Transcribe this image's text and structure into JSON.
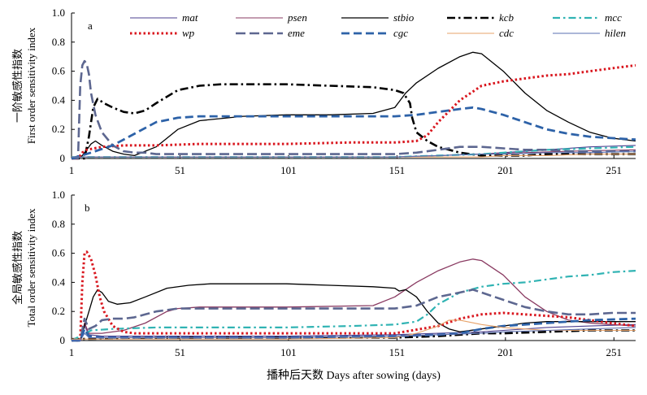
{
  "figure": {
    "xlabel": "播种后天数 Days after sowing (days)"
  },
  "colors": {
    "mat": "#4b3f8f",
    "psen": "#8a3b62",
    "stbio": "#000000",
    "kcb": "#000000",
    "mcc": "#30b3b3",
    "wp": "#d9161e",
    "eme": "#5d6790",
    "cgc": "#2d62a8",
    "cdc": "#e7a36a",
    "hilen": "#5a6fb0"
  },
  "chart_data": [
    {
      "type": "line",
      "panel": "a",
      "ylabel_cn": "一阶敏感性指数",
      "ylabel_en": "First order sensitivity index",
      "xlim": [
        1,
        261
      ],
      "ylim": [
        0,
        1.0
      ],
      "xticks": [
        1,
        51,
        101,
        151,
        201,
        251
      ],
      "yticks": [
        0,
        0.2,
        0.4,
        0.6,
        0.8,
        1.0
      ],
      "ytick_labels": [
        "0",
        "0.2",
        "0.4",
        "0.6",
        "0.8",
        "1.0"
      ],
      "grid": false,
      "legend": "top-center, 5 columns",
      "series": [
        {
          "name": "mat",
          "style": "solid-thin",
          "x": [
            1,
            50,
            100,
            150,
            170,
            190,
            200,
            220,
            240,
            261
          ],
          "y": [
            0.01,
            0.01,
            0.01,
            0.01,
            0.02,
            0.03,
            0.04,
            0.06,
            0.08,
            0.09
          ]
        },
        {
          "name": "psen",
          "style": "solid-thin",
          "x": [
            1,
            50,
            100,
            150,
            170,
            190,
            210,
            230,
            261
          ],
          "y": [
            0.01,
            0.01,
            0.01,
            0.01,
            0.02,
            0.03,
            0.04,
            0.05,
            0.06
          ]
        },
        {
          "name": "stbio",
          "style": "solid",
          "x": [
            1,
            4,
            6,
            8,
            10,
            12,
            15,
            20,
            25,
            30,
            40,
            50,
            60,
            80,
            100,
            120,
            140,
            150,
            155,
            160,
            170,
            180,
            186,
            190,
            200,
            210,
            220,
            230,
            240,
            250,
            261
          ],
          "y": [
            0,
            0,
            0.02,
            0.06,
            0.1,
            0.12,
            0.09,
            0.05,
            0.03,
            0.02,
            0.08,
            0.2,
            0.26,
            0.29,
            0.3,
            0.3,
            0.31,
            0.35,
            0.45,
            0.52,
            0.62,
            0.7,
            0.73,
            0.72,
            0.6,
            0.45,
            0.33,
            0.25,
            0.18,
            0.14,
            0.12
          ]
        },
        {
          "name": "kcb",
          "style": "dashdot-bold",
          "x": [
            1,
            7,
            9,
            11,
            13,
            16,
            20,
            25,
            30,
            35,
            40,
            50,
            60,
            70,
            80,
            100,
            120,
            140,
            150,
            154,
            157,
            158,
            160,
            165,
            170,
            180,
            190,
            200,
            210,
            220,
            230,
            240,
            250,
            261
          ],
          "y": [
            0,
            0,
            0.15,
            0.35,
            0.41,
            0.38,
            0.35,
            0.32,
            0.31,
            0.33,
            0.38,
            0.47,
            0.5,
            0.51,
            0.51,
            0.51,
            0.5,
            0.49,
            0.47,
            0.45,
            0.38,
            0.28,
            0.18,
            0.12,
            0.08,
            0.04,
            0.02,
            0.02,
            0.02,
            0.03,
            0.03,
            0.03,
            0.03,
            0.03
          ]
        },
        {
          "name": "mcc",
          "style": "dashdot",
          "x": [
            1,
            100,
            150,
            170,
            190,
            200,
            210,
            220,
            240,
            261
          ],
          "y": [
            0.01,
            0.01,
            0.01,
            0.02,
            0.03,
            0.04,
            0.05,
            0.06,
            0.07,
            0.08
          ]
        },
        {
          "name": "wp",
          "style": "dotted-bold",
          "x": [
            1,
            4,
            6,
            8,
            15,
            25,
            40,
            60,
            100,
            130,
            150,
            160,
            165,
            170,
            180,
            190,
            200,
            210,
            220,
            230,
            240,
            250,
            261
          ],
          "y": [
            0,
            0,
            0.04,
            0.06,
            0.08,
            0.09,
            0.09,
            0.1,
            0.1,
            0.11,
            0.11,
            0.12,
            0.16,
            0.25,
            0.4,
            0.5,
            0.53,
            0.55,
            0.57,
            0.58,
            0.6,
            0.62,
            0.64
          ]
        },
        {
          "name": "eme",
          "style": "dash-long",
          "x": [
            1,
            4,
            5,
            6,
            7,
            8,
            9,
            10,
            12,
            15,
            20,
            25,
            30,
            35,
            40,
            60,
            100,
            150,
            160,
            170,
            180,
            190,
            200,
            210,
            220,
            230,
            240,
            250,
            261
          ],
          "y": [
            0,
            0,
            0.5,
            0.64,
            0.67,
            0.65,
            0.58,
            0.45,
            0.3,
            0.18,
            0.09,
            0.05,
            0.04,
            0.04,
            0.03,
            0.03,
            0.03,
            0.03,
            0.04,
            0.06,
            0.08,
            0.08,
            0.07,
            0.06,
            0.06,
            0.05,
            0.05,
            0.05,
            0.05
          ]
        },
        {
          "name": "cgc",
          "style": "dash-bold",
          "x": [
            1,
            10,
            20,
            30,
            40,
            50,
            60,
            80,
            100,
            150,
            160,
            170,
            180,
            186,
            190,
            200,
            210,
            220,
            230,
            240,
            250,
            261
          ],
          "y": [
            0,
            0.04,
            0.09,
            0.17,
            0.25,
            0.28,
            0.29,
            0.29,
            0.29,
            0.29,
            0.3,
            0.32,
            0.34,
            0.35,
            0.34,
            0.3,
            0.25,
            0.2,
            0.17,
            0.15,
            0.14,
            0.13
          ]
        },
        {
          "name": "cdc",
          "style": "solid-thin",
          "x": [
            1,
            150,
            170,
            190,
            200,
            220,
            240,
            261
          ],
          "y": [
            0.01,
            0.01,
            0.01,
            0.01,
            0.02,
            0.02,
            0.03,
            0.03
          ]
        },
        {
          "name": "hilen",
          "style": "solid-thin",
          "x": [
            1,
            100,
            150,
            170,
            190,
            200,
            220,
            240,
            261
          ],
          "y": [
            0.01,
            0.01,
            0.01,
            0.02,
            0.03,
            0.03,
            0.04,
            0.04,
            0.05
          ]
        }
      ]
    },
    {
      "type": "line",
      "panel": "b",
      "ylabel_cn": "全局敏感性指数",
      "ylabel_en": "Total order sensitivity index",
      "xlim": [
        1,
        261
      ],
      "ylim": [
        0,
        1.0
      ],
      "xticks": [
        1,
        51,
        101,
        151,
        201,
        251
      ],
      "yticks": [
        0,
        0.2,
        0.4,
        0.6,
        0.8,
        1.0
      ],
      "ytick_labels": [
        "0",
        "0.2",
        "0.4",
        "0.6",
        "0.8",
        "1.0"
      ],
      "grid": false,
      "series": [
        {
          "name": "mat",
          "style": "solid-thin",
          "x": [
            1,
            5,
            7,
            9,
            15,
            30,
            60,
            100,
            150,
            170,
            190,
            200,
            220,
            240,
            261
          ],
          "y": [
            0,
            0,
            0.1,
            0.04,
            0.03,
            0.03,
            0.03,
            0.03,
            0.04,
            0.05,
            0.06,
            0.07,
            0.09,
            0.1,
            0.11
          ]
        },
        {
          "name": "psen",
          "style": "solid",
          "x": [
            1,
            5,
            7,
            9,
            15,
            25,
            35,
            45,
            50,
            60,
            100,
            140,
            150,
            160,
            170,
            180,
            186,
            190,
            200,
            210,
            220,
            230,
            240,
            250,
            261
          ],
          "y": [
            0,
            0,
            0.12,
            0.05,
            0.05,
            0.07,
            0.12,
            0.2,
            0.22,
            0.23,
            0.23,
            0.24,
            0.3,
            0.4,
            0.48,
            0.54,
            0.56,
            0.55,
            0.45,
            0.3,
            0.2,
            0.14,
            0.12,
            0.11,
            0.1
          ]
        },
        {
          "name": "stbio",
          "style": "solid",
          "x": [
            1,
            5,
            7,
            9,
            11,
            13,
            15,
            18,
            22,
            28,
            35,
            45,
            55,
            65,
            80,
            100,
            120,
            140,
            150,
            152,
            155,
            160,
            165,
            170,
            175,
            180,
            190,
            200,
            210,
            220,
            240,
            261
          ],
          "y": [
            0,
            0,
            0.1,
            0.2,
            0.3,
            0.35,
            0.33,
            0.27,
            0.25,
            0.26,
            0.3,
            0.36,
            0.38,
            0.39,
            0.39,
            0.39,
            0.38,
            0.37,
            0.36,
            0.34,
            0.35,
            0.3,
            0.2,
            0.12,
            0.08,
            0.06,
            0.08,
            0.1,
            0.12,
            0.13,
            0.13,
            0.13
          ]
        },
        {
          "name": "kcb",
          "style": "dashdot-bold",
          "x": [
            1,
            50,
            100,
            150,
            170,
            180,
            190,
            200,
            220,
            240,
            261
          ],
          "y": [
            0.01,
            0.02,
            0.02,
            0.02,
            0.03,
            0.04,
            0.05,
            0.05,
            0.06,
            0.07,
            0.07
          ]
        },
        {
          "name": "mcc",
          "style": "dashdot",
          "x": [
            1,
            10,
            20,
            40,
            60,
            80,
            100,
            130,
            150,
            160,
            165,
            170,
            180,
            190,
            200,
            210,
            220,
            230,
            240,
            250,
            261
          ],
          "y": [
            0,
            0.07,
            0.08,
            0.09,
            0.09,
            0.09,
            0.09,
            0.1,
            0.11,
            0.13,
            0.18,
            0.25,
            0.33,
            0.37,
            0.39,
            0.4,
            0.42,
            0.44,
            0.45,
            0.47,
            0.48
          ]
        },
        {
          "name": "wp",
          "style": "dotted-bold",
          "x": [
            1,
            5,
            6,
            7,
            8,
            10,
            12,
            14,
            16,
            20,
            25,
            30,
            40,
            60,
            100,
            150,
            170,
            180,
            190,
            200,
            210,
            220,
            230,
            240,
            250,
            261
          ],
          "y": [
            0,
            0,
            0.4,
            0.6,
            0.61,
            0.56,
            0.45,
            0.3,
            0.2,
            0.1,
            0.06,
            0.05,
            0.05,
            0.05,
            0.05,
            0.05,
            0.1,
            0.15,
            0.18,
            0.19,
            0.18,
            0.17,
            0.16,
            0.14,
            0.12,
            0.1
          ]
        },
        {
          "name": "eme",
          "style": "dash-long",
          "x": [
            1,
            5,
            7,
            9,
            12,
            15,
            20,
            25,
            30,
            35,
            40,
            50,
            60,
            100,
            150,
            160,
            170,
            180,
            186,
            190,
            200,
            210,
            220,
            230,
            240,
            250,
            261
          ],
          "y": [
            0,
            0,
            0.15,
            0.08,
            0.1,
            0.14,
            0.15,
            0.15,
            0.16,
            0.18,
            0.2,
            0.22,
            0.22,
            0.22,
            0.22,
            0.24,
            0.3,
            0.33,
            0.35,
            0.33,
            0.28,
            0.23,
            0.2,
            0.18,
            0.18,
            0.19,
            0.19
          ]
        },
        {
          "name": "cgc",
          "style": "dash-bold",
          "x": [
            1,
            5,
            7,
            9,
            15,
            30,
            60,
            100,
            150,
            170,
            180,
            190,
            200,
            220,
            240,
            261
          ],
          "y": [
            0,
            0,
            0.08,
            0.03,
            0.02,
            0.02,
            0.02,
            0.02,
            0.03,
            0.04,
            0.05,
            0.08,
            0.1,
            0.12,
            0.14,
            0.15
          ]
        },
        {
          "name": "cdc",
          "style": "solid-thin",
          "x": [
            1,
            100,
            150,
            160,
            170,
            175,
            180,
            190,
            200,
            210,
            220,
            240,
            261
          ],
          "y": [
            0.01,
            0.01,
            0.02,
            0.05,
            0.1,
            0.14,
            0.14,
            0.11,
            0.09,
            0.08,
            0.07,
            0.07,
            0.07
          ]
        },
        {
          "name": "hilen",
          "style": "solid-thin",
          "x": [
            1,
            5,
            7,
            9,
            15,
            60,
            100,
            150,
            170,
            190,
            200,
            220,
            240,
            261
          ],
          "y": [
            0,
            0,
            0.05,
            0.02,
            0.02,
            0.02,
            0.02,
            0.03,
            0.04,
            0.05,
            0.06,
            0.07,
            0.08,
            0.09
          ]
        }
      ]
    }
  ]
}
